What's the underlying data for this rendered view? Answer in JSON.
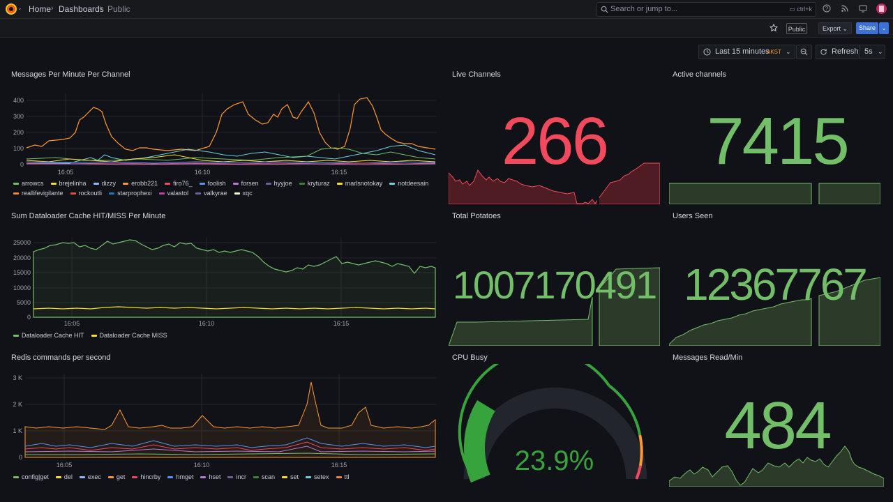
{
  "nav": {
    "breadcrumbs": [
      "Home",
      "Dashboards",
      "Public"
    ],
    "search_placeholder": "Search or jump to...",
    "search_shortcut": "ctrl+k"
  },
  "toolbar": {
    "public_badge": "Public",
    "export_label": "Export",
    "share_label": "Share"
  },
  "time": {
    "range_label": "Last 15 minutes",
    "timezone": "AKST",
    "refresh_label": "Refresh",
    "interval": "5s"
  },
  "colors": {
    "red": "#f2495c",
    "green": "#73bf69",
    "orange": "#ff9830",
    "yellow": "#fade2a",
    "blue": "#5794f2",
    "purple": "#b877d9"
  },
  "panels": {
    "messages_per_minute": {
      "title": "Messages Per Minute Per Channel",
      "yticks": [
        "400",
        "300",
        "200",
        "100",
        "0"
      ],
      "xticks": [
        "16:05",
        "16:10",
        "16:15"
      ],
      "legend": [
        {
          "name": "arrowcs",
          "color": "#73bf69"
        },
        {
          "name": "brejelinha",
          "color": "#fade2a"
        },
        {
          "name": "dizzy",
          "color": "#8ab8ff"
        },
        {
          "name": "erobb221",
          "color": "#ff9830"
        },
        {
          "name": "firo76_",
          "color": "#f2495c"
        },
        {
          "name": "foolish",
          "color": "#5794f2"
        },
        {
          "name": "forsen",
          "color": "#b877d9"
        },
        {
          "name": "hyyjoe",
          "color": "#705da0"
        },
        {
          "name": "kryturaz",
          "color": "#37872d"
        },
        {
          "name": "marlsnotokay",
          "color": "#fade2a"
        },
        {
          "name": "notdeesain",
          "color": "#6ed0e0"
        },
        {
          "name": "reallifevigilante",
          "color": "#ef843c"
        },
        {
          "name": "rockoutli",
          "color": "#e24d42"
        },
        {
          "name": "starprophexi",
          "color": "#1f78c1"
        },
        {
          "name": "valastol",
          "color": "#ba43a9"
        },
        {
          "name": "valkyrae",
          "color": "#705da0"
        },
        {
          "name": "xqc",
          "color": "#f9ffdd"
        }
      ]
    },
    "live_channels": {
      "title": "Live Channels",
      "value": "266"
    },
    "active_channels": {
      "title": "Active channels",
      "value": "7415"
    },
    "dataloader": {
      "title": "Sum Dataloader Cache HIT/MISS Per Minute",
      "yticks": [
        "25000",
        "20000",
        "15000",
        "10000",
        "5000",
        "0"
      ],
      "xticks": [
        "16:05",
        "16:10",
        "16:15"
      ],
      "legend": [
        {
          "name": "Dataloader Cache HIT",
          "color": "#73bf69"
        },
        {
          "name": "Dataloader Cache MISS",
          "color": "#fade2a"
        }
      ]
    },
    "total_potatoes": {
      "title": "Total Potatoes",
      "value": "1007170491"
    },
    "users_seen": {
      "title": "Users Seen",
      "value": "12367767"
    },
    "redis": {
      "title": "Redis commands per second",
      "yticks": [
        "3 K",
        "2 K",
        "1 K",
        "0"
      ],
      "xticks": [
        "16:05",
        "16:10",
        "16:15"
      ],
      "legend": [
        {
          "name": "config|get",
          "color": "#73bf69"
        },
        {
          "name": "del",
          "color": "#fade2a"
        },
        {
          "name": "exec",
          "color": "#8ab8ff"
        },
        {
          "name": "get",
          "color": "#ff9830"
        },
        {
          "name": "hincrby",
          "color": "#f2495c"
        },
        {
          "name": "hmget",
          "color": "#5794f2"
        },
        {
          "name": "hset",
          "color": "#b877d9"
        },
        {
          "name": "incr",
          "color": "#705da0"
        },
        {
          "name": "scan",
          "color": "#37872d"
        },
        {
          "name": "set",
          "color": "#fade2a"
        },
        {
          "name": "setex",
          "color": "#6ed0e0"
        },
        {
          "name": "ttl",
          "color": "#ef843c"
        }
      ]
    },
    "cpu_busy": {
      "title": "CPU Busy",
      "value": "23.9%",
      "percent": 23.9
    },
    "messages_read": {
      "title": "Messages Read/Min",
      "value": "484"
    }
  }
}
